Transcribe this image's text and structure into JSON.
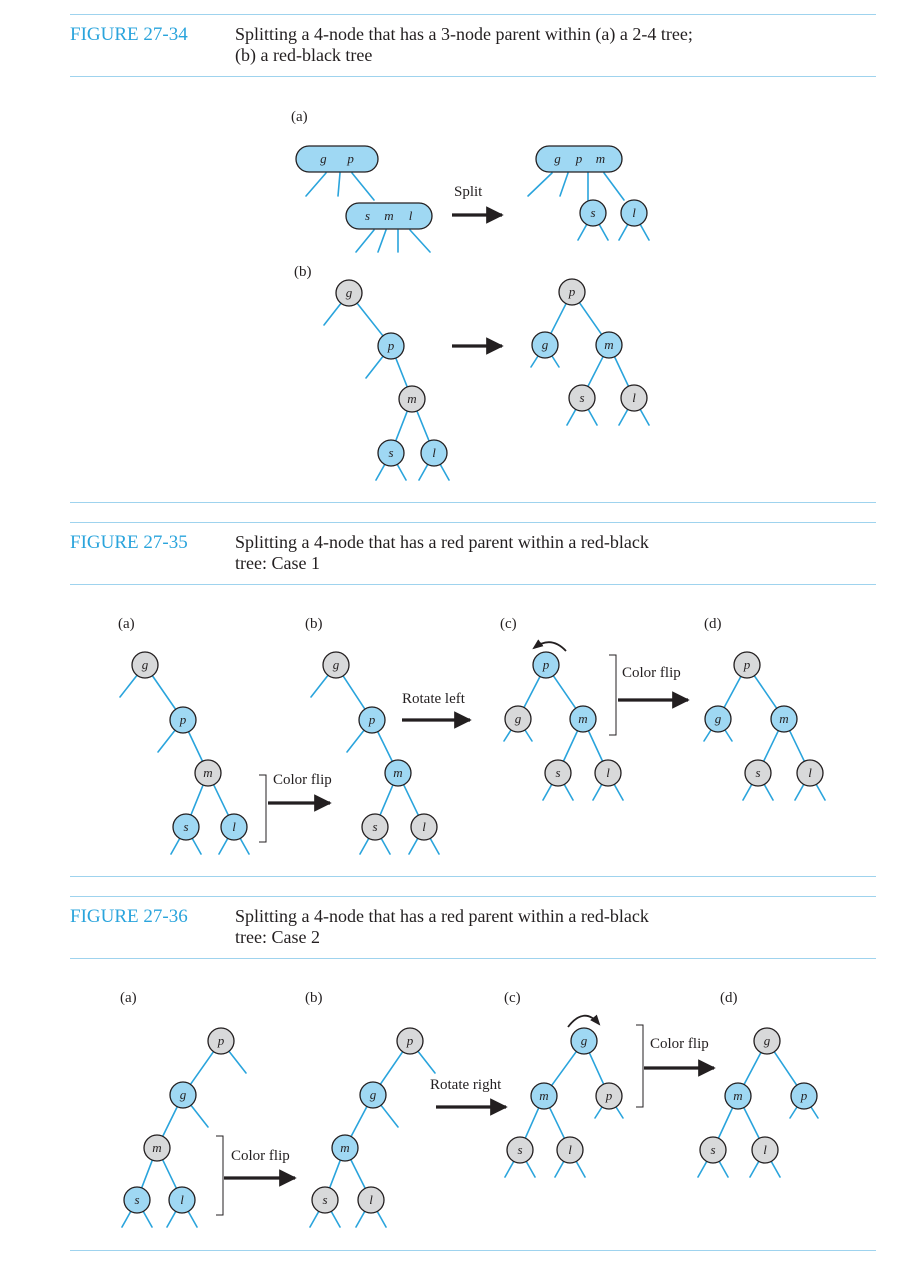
{
  "figures": [
    {
      "number": "FIGURE 27-34",
      "caption_line1": "Splitting a 4-node that has a 3-node parent within (a) a 2-4 tree;",
      "caption_line2": "(b) a red-black tree"
    },
    {
      "number": "FIGURE 27-35",
      "caption_line1": "Splitting a 4-node that has a red parent within a red-black",
      "caption_line2": "tree: Case 1"
    },
    {
      "number": "FIGURE 27-36",
      "caption_line1": "Splitting a 4-node that has a red parent within a red-black",
      "caption_line2": "tree: Case 2"
    }
  ],
  "part_labels": [
    "(a)",
    "(b)",
    "(c)",
    "(d)"
  ],
  "operations": {
    "split": "Split",
    "color_flip": "Color flip",
    "rotate_left": "Rotate left",
    "rotate_right": "Rotate right"
  },
  "node_keys": {
    "g": "g",
    "p": "p",
    "m": "m",
    "s": "s",
    "l": "l"
  },
  "colors": {
    "accent": "#2aa4dc",
    "rule": "#9fd3ee",
    "red_node_fill": "#9fd8f3",
    "black_node_fill": "#d8d9da",
    "edge": "#2aa4dc",
    "outline": "#231f20"
  },
  "legend": {
    "red_node": "blue fill",
    "black_node": "gray fill"
  }
}
